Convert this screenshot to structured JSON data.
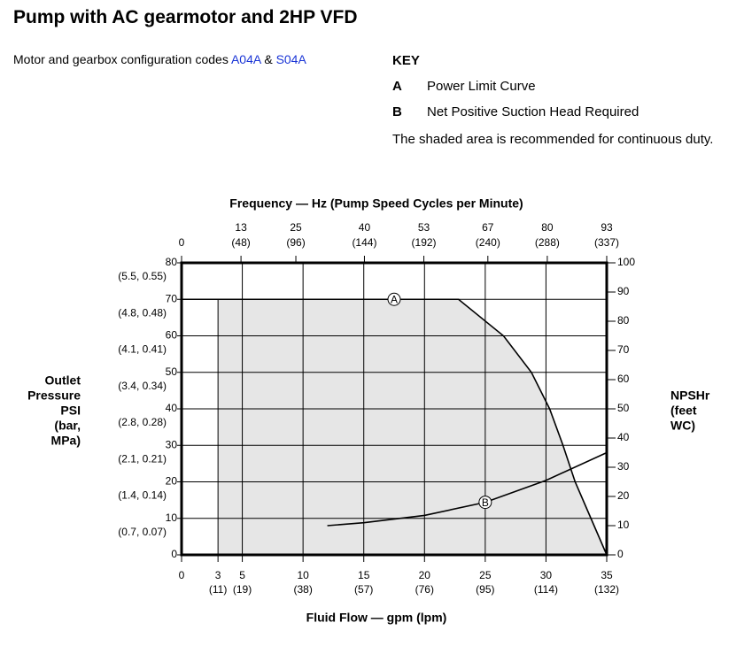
{
  "header": {
    "title": "Pump with AC gearmotor and 2HP VFD",
    "subtitle": "Motor and gearbox configuration codes",
    "codes": [
      "A04A",
      "S04A"
    ],
    "joiner": "&"
  },
  "key": {
    "title": "KEY",
    "items": [
      {
        "letter": "A",
        "label": "Power Limit Curve"
      },
      {
        "letter": "B",
        "label": "Net Positive Suction Head Required"
      }
    ],
    "note": "The shaded area is recommended for continuous duty."
  },
  "chart_data": {
    "type": "line",
    "x_label": "Fluid Flow — gpm (lpm)",
    "x2_label": "Frequency — Hz (Pump Speed Cycles per Minute)",
    "y_label": [
      "Outlet",
      "Pressure",
      "PSI",
      "(bar,",
      "MPa)"
    ],
    "y2_label": [
      "NPSHr",
      "(feet",
      "WC)"
    ],
    "xlim": [
      0,
      35
    ],
    "xticks": [
      0,
      3,
      5,
      10,
      15,
      20,
      25,
      30,
      35
    ],
    "xtick_sublabels": [
      null,
      "(11)",
      "(19)",
      "(38)",
      "(57)",
      "(76)",
      "(95)",
      "(114)",
      "(132)"
    ],
    "x2lim": [
      0,
      93
    ],
    "x2ticks": [
      0,
      13,
      25,
      40,
      53,
      67,
      80,
      93
    ],
    "x2tick_sublabels": [
      null,
      "(48)",
      "(96)",
      "(144)",
      "(192)",
      "(240)",
      "(288)",
      "(337)"
    ],
    "ylim": [
      0,
      80
    ],
    "yticks": [
      0,
      10,
      20,
      30,
      40,
      50,
      60,
      70,
      80
    ],
    "ytick_sublabels": [
      null,
      "(0.7, 0.07)",
      "(1.4, 0.14)",
      "(2.1, 0.21)",
      "(2.8, 0.28)",
      "(3.4, 0.34)",
      "(4.1, 0.41)",
      "(4.8, 0.48)",
      "(5.5, 0.55)"
    ],
    "y2lim": [
      0,
      100
    ],
    "y2ticks": [
      0,
      10,
      20,
      30,
      40,
      50,
      60,
      70,
      80,
      90,
      100
    ],
    "grid": true,
    "shade_from": 3,
    "shade_color": "#e6e6e6",
    "series": [
      {
        "name": "A",
        "color": "#000000",
        "label_at": 17.5,
        "x": [
          0,
          22.8,
          26.5,
          28.8,
          30.3,
          31.4,
          32.4,
          33.7,
          35
        ],
        "values": [
          70,
          70,
          60,
          50,
          40,
          30,
          20,
          10,
          0
        ]
      },
      {
        "name": "B",
        "color": "#000000",
        "axis": "y2",
        "label_at": 25,
        "x": [
          12,
          15,
          20,
          25,
          30,
          35
        ],
        "values": [
          10,
          11,
          13.5,
          18,
          25.5,
          35
        ]
      }
    ]
  }
}
